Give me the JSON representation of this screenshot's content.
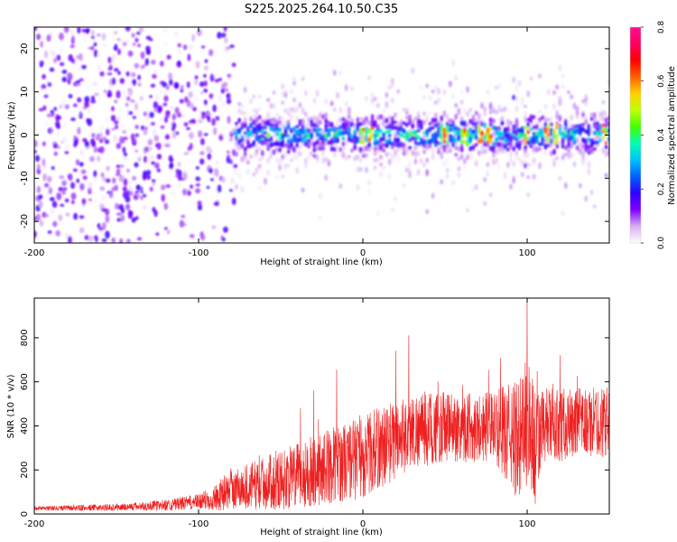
{
  "title": "S225.2025.264.10.50.C35",
  "colors": {
    "snr_line": "#ee2020",
    "axis": "#000000",
    "background": "#ffffff"
  },
  "chart_data": [
    {
      "type": "heatmap",
      "name": "spectrogram",
      "xlabel": "Height of straight line (km)",
      "ylabel": "Frequency (Hz)",
      "xlim": [
        -200,
        150
      ],
      "ylim": [
        -25,
        25
      ],
      "x_ticks": [
        -200,
        -100,
        0,
        100
      ],
      "y_ticks": [
        -20,
        -10,
        0,
        10,
        20
      ],
      "colorbar": {
        "label": "Normalized spectral amplitude",
        "range": [
          0.0,
          0.8
        ],
        "ticks": [
          0.0,
          0.2,
          0.4,
          0.6,
          0.8
        ],
        "colormap": [
          "#ffffff",
          "#d8b0f0",
          "#8000ff",
          "#3000ff",
          "#0060ff",
          "#00c0ff",
          "#00ffb0",
          "#40ff00",
          "#c0ff00",
          "#ffd000",
          "#ff6000",
          "#ff0000",
          "#ff0060",
          "#ff1090"
        ]
      },
      "regions": [
        {
          "x_range": [
            -200,
            -78
          ],
          "description": "diffuse broadband noise",
          "freq_range": [
            -25,
            25
          ],
          "amplitude": 0.1
        },
        {
          "x_range": [
            -78,
            150
          ],
          "description": "narrow band near 0 Hz",
          "freq_range": [
            -6,
            6
          ],
          "amplitude": 0.35
        }
      ],
      "track_peaks_x": [
        0,
        5,
        50,
        62,
        72,
        77,
        100,
        112,
        118,
        147
      ],
      "track_peak_amplitude": 0.62
    },
    {
      "type": "line",
      "name": "snr",
      "xlabel": "Height of straight line (km)",
      "ylabel": "SNR (10 * v/v)",
      "xlim": [
        -200,
        150
      ],
      "ylim": [
        0,
        980
      ],
      "x_ticks": [
        -200,
        -100,
        0,
        100
      ],
      "y_ticks": [
        0,
        200,
        400,
        600,
        800
      ],
      "envelope": {
        "x": [
          -200,
          -150,
          -120,
          -100,
          -90,
          -80,
          -60,
          -40,
          -20,
          -10,
          0,
          10,
          20,
          30,
          50,
          80,
          95,
          100,
          105,
          110,
          130,
          150
        ],
        "mean": [
          25,
          30,
          40,
          55,
          75,
          110,
          140,
          170,
          220,
          240,
          260,
          300,
          340,
          380,
          390,
          400,
          330,
          420,
          300,
          400,
          410,
          420
        ],
        "spread": [
          10,
          15,
          25,
          35,
          60,
          90,
          120,
          150,
          170,
          180,
          190,
          190,
          180,
          170,
          160,
          160,
          280,
          320,
          280,
          170,
          160,
          160
        ]
      },
      "notable_peaks": [
        {
          "x": -38,
          "y": 480
        },
        {
          "x": -30,
          "y": 560
        },
        {
          "x": -16,
          "y": 655
        },
        {
          "x": 20,
          "y": 740
        },
        {
          "x": 28,
          "y": 810
        },
        {
          "x": 100,
          "y": 980
        },
        {
          "x": 120,
          "y": 720
        }
      ]
    }
  ]
}
